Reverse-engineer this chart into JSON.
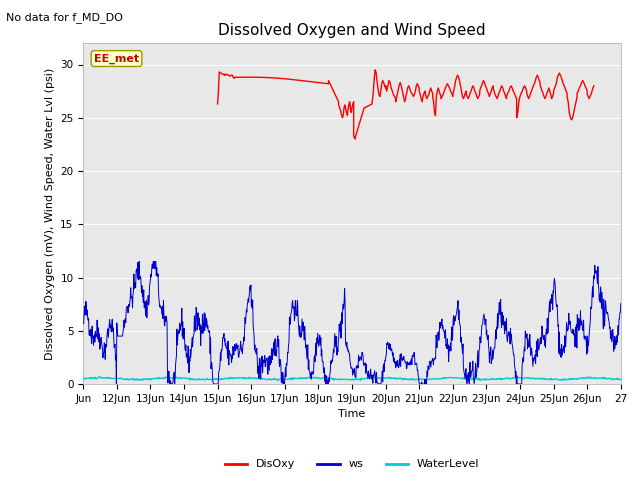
{
  "title": "Dissolved Oxygen and Wind Speed",
  "subtitle": "No data for f_MD_DO",
  "xlabel": "Time",
  "ylabel": "Dissolved Oxygen (mV), Wind Speed, Water Lvl (psi)",
  "annotation": "EE_met",
  "x_tick_labels": [
    "Jun",
    "12Jun",
    "13Jun",
    "14Jun",
    "15Jun",
    "16Jun",
    "17Jun",
    "18Jun",
    "19Jun",
    "20Jun",
    "21Jun",
    "22Jun",
    "23Jun",
    "24Jun",
    "25Jun",
    "26Jun",
    "27"
  ],
  "ylim": [
    0,
    32
  ],
  "yticks": [
    0,
    5,
    10,
    15,
    20,
    25,
    30
  ],
  "bg_color": "#e8e8e8",
  "disoxy_color": "#ff0000",
  "ws_color": "#0000cc",
  "wl_color": "#00cccc",
  "title_fontsize": 11,
  "label_fontsize": 8,
  "tick_fontsize": 7.5,
  "legend_fontsize": 8,
  "subtitle_fontsize": 8,
  "annot_fontsize": 8
}
